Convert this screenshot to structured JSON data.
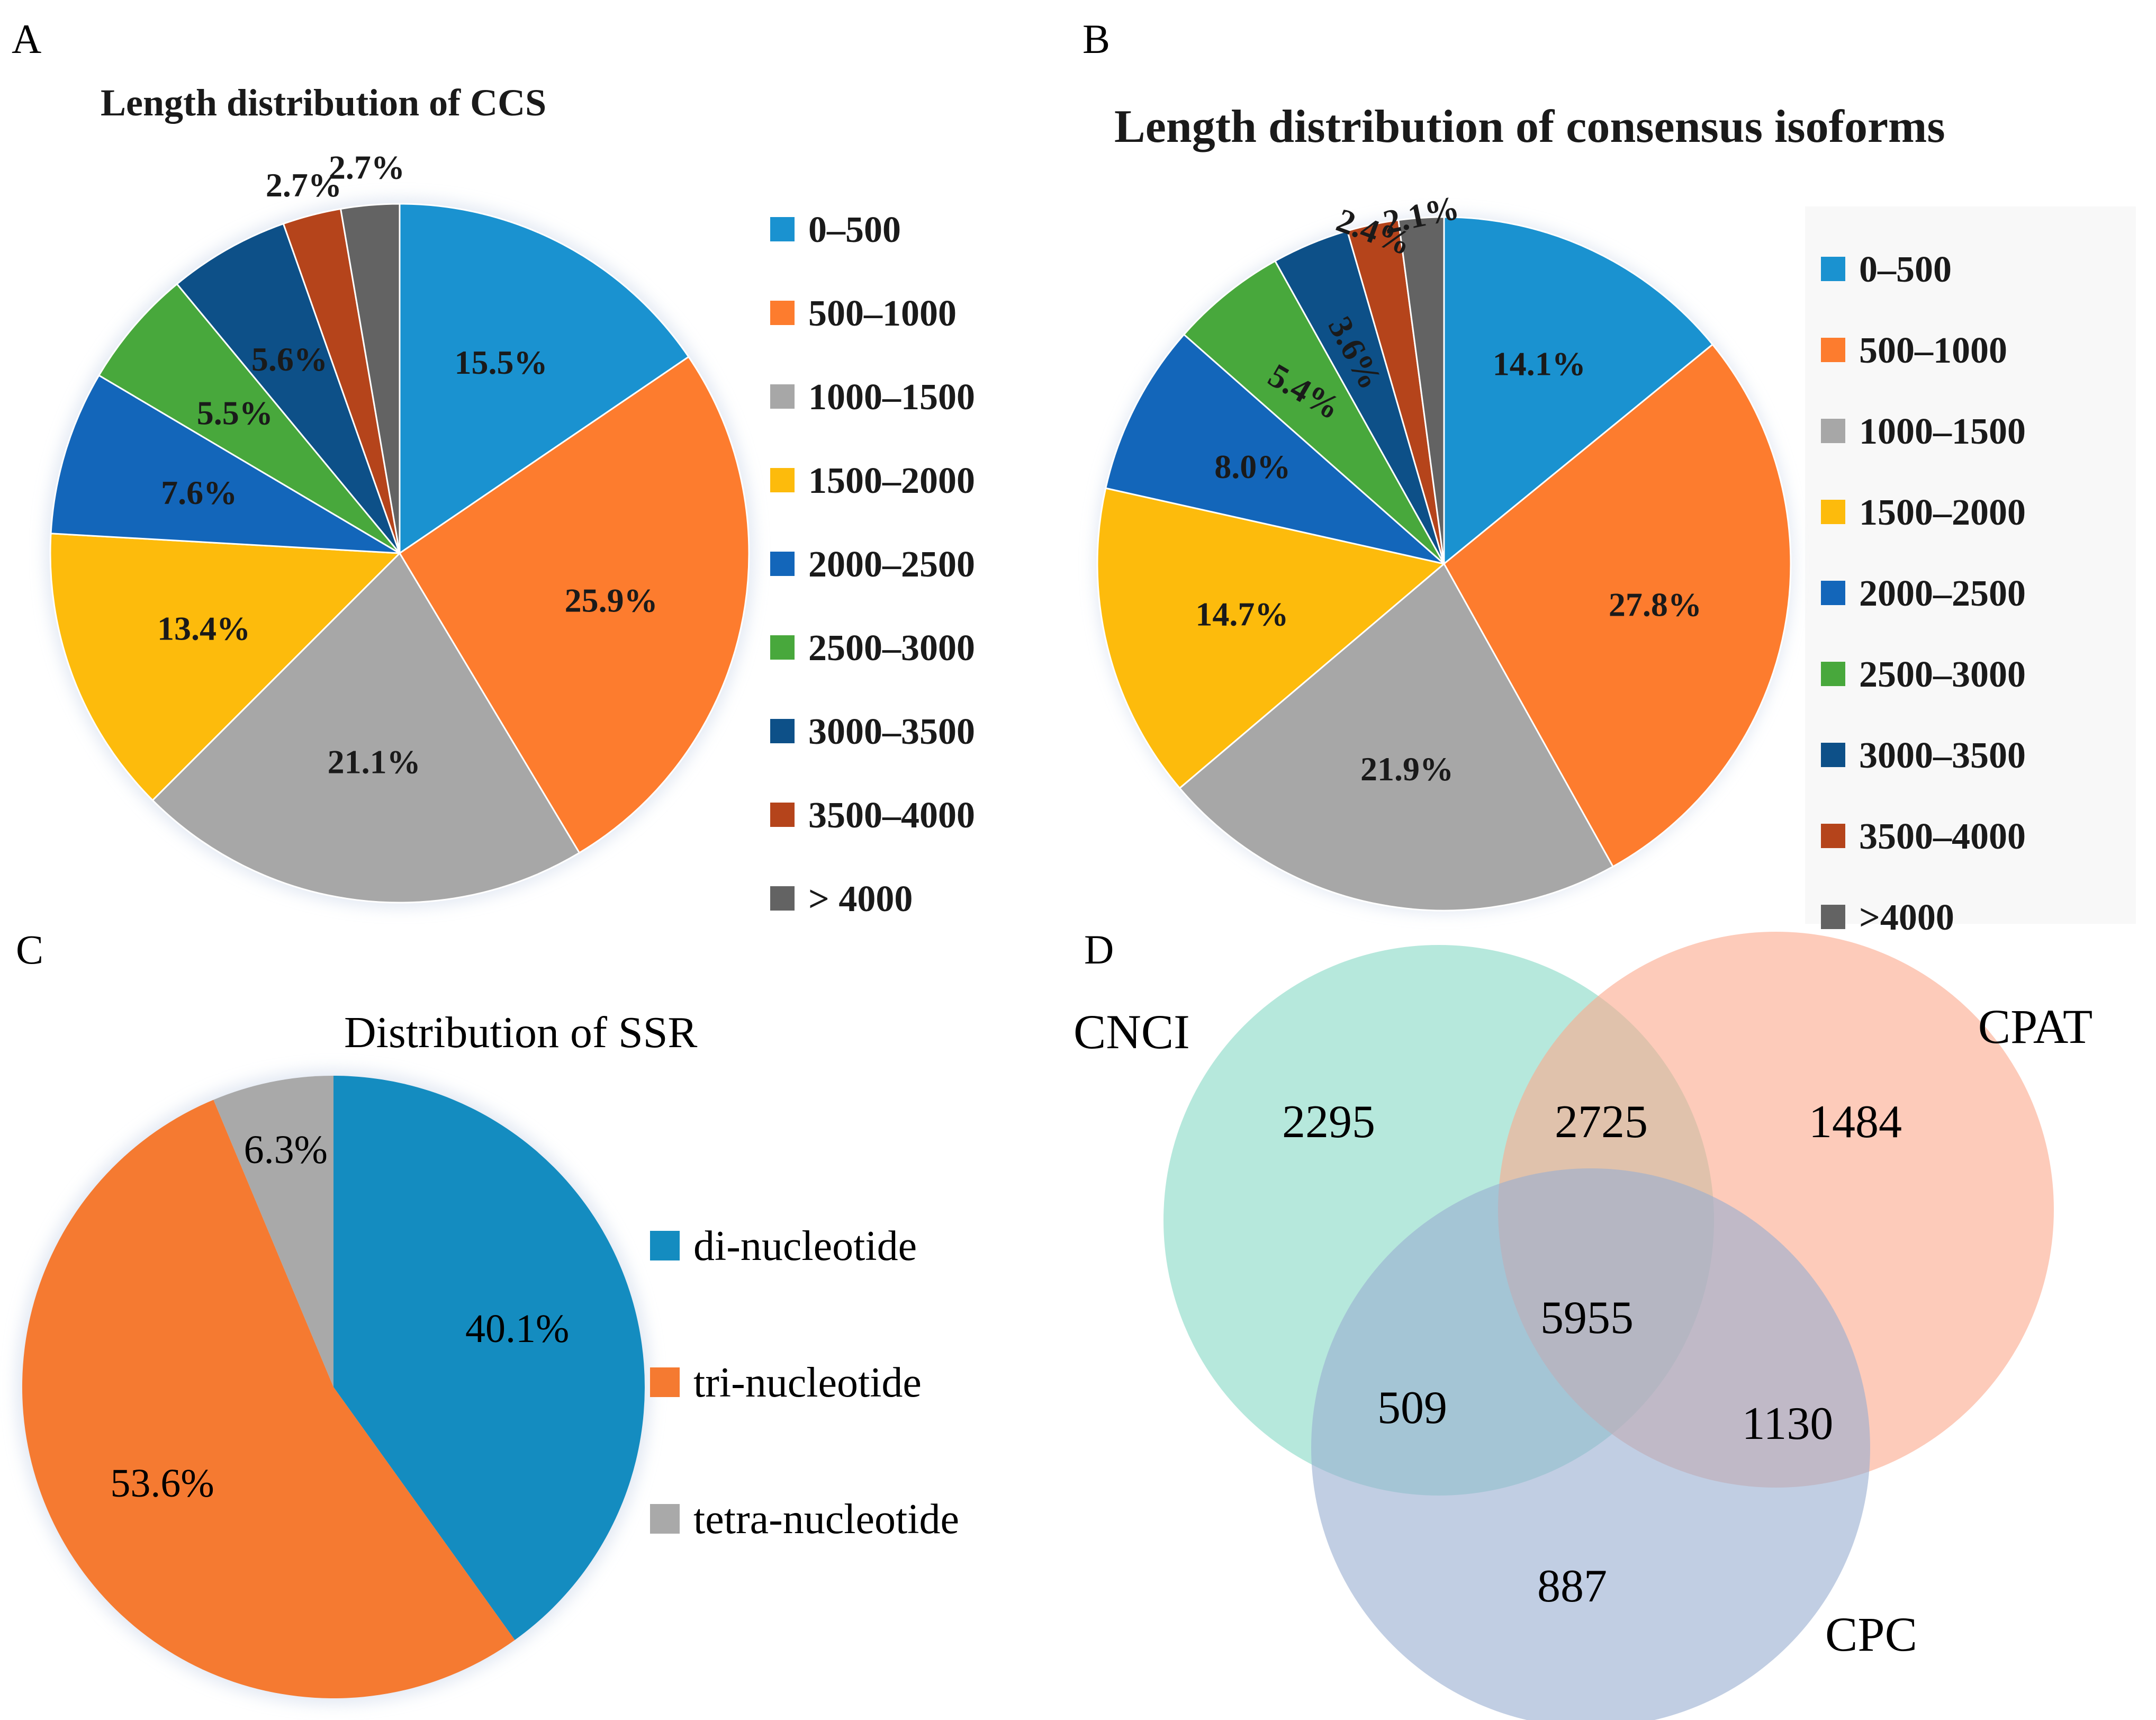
{
  "panels": {
    "a": "A",
    "b": "B",
    "c": "C",
    "d": "D"
  },
  "chart_data": [
    {
      "type": "pie",
      "title": "Length distribution of CCS",
      "categories": [
        "0–500",
        "500–1000",
        "1000–1500",
        "1500–2000",
        "2000–2500",
        "2500–3000",
        "3000–3500",
        "3500–4000",
        "> 4000"
      ],
      "values": [
        15.5,
        25.9,
        21.1,
        13.4,
        7.6,
        5.5,
        5.6,
        2.7,
        2.7
      ],
      "labels": [
        "15.5%",
        "25.9%",
        "21.1%",
        "13.4%",
        "7.6%",
        "5.5%",
        "5.6%",
        "2.7%",
        "2.7%"
      ],
      "colors": [
        "#1a92d0",
        "#fd7c2e",
        "#a7a7a7",
        "#fdbb0c",
        "#1366ba",
        "#48a83c",
        "#0d5088",
        "#b5441b",
        "#636363"
      ],
      "legend": "right"
    },
    {
      "type": "pie",
      "title": "Length distribution of  consensus isoforms",
      "categories": [
        "0–500",
        "500–1000",
        "1000–1500",
        "1500–2000",
        "2000–2500",
        "2500–3000",
        "3000–3500",
        "3500–4000",
        ">4000"
      ],
      "values": [
        14.1,
        27.8,
        21.9,
        14.7,
        8.0,
        5.4,
        3.6,
        2.4,
        2.1
      ],
      "labels": [
        "14.1%",
        "27.8%",
        "21.9%",
        "14.7%",
        "8.0%",
        "5.4%",
        "3.6%",
        "2.4%",
        "2.1%"
      ],
      "colors": [
        "#1a92d0",
        "#fd7c2e",
        "#a7a7a7",
        "#fdbb0c",
        "#1366ba",
        "#48a83c",
        "#0d5088",
        "#b5441b",
        "#636363"
      ],
      "legend": "right"
    },
    {
      "type": "pie",
      "title": "Distribution of SSR",
      "categories": [
        "di-nucleotide",
        "tri-nucleotide",
        "tetra-nucleotide"
      ],
      "values": [
        40.1,
        53.6,
        6.3
      ],
      "labels": [
        "40.1%",
        "53.6%",
        "6.3%"
      ],
      "colors": [
        "#148cc0",
        "#f57a31",
        "#a9a9a9"
      ],
      "legend": "right"
    },
    {
      "type": "venn",
      "sets": [
        "CNCI",
        "CPAT",
        "CPC"
      ],
      "colors": [
        "#86d8c4",
        "#fba98c",
        "#98aed0"
      ],
      "regions": {
        "CNCI_only": 2295,
        "CNCI_CPAT": 2725,
        "CPAT_only": 1484,
        "all": 5955,
        "CNCI_CPC": 509,
        "CPAT_CPC": 1130,
        "CPC_only": 887
      }
    }
  ]
}
